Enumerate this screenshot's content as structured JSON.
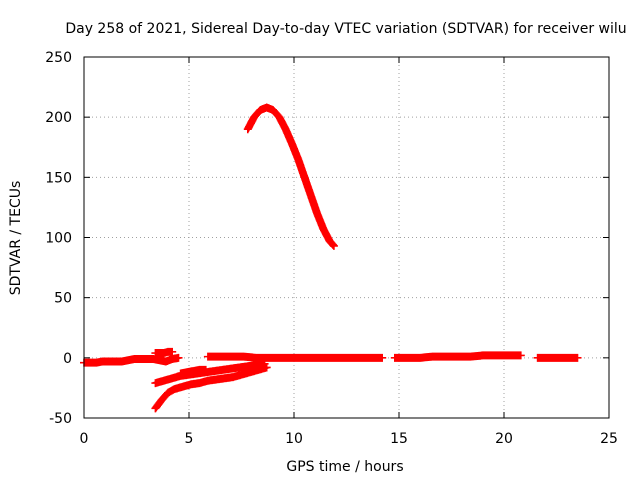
{
  "chart_data": {
    "type": "scatter",
    "title": "Day 258 of 2021, Sidereal Day-to-day VTEC variation (SDTVAR) for receiver wilu",
    "xlabel": "GPS time / hours",
    "ylabel": "SDTVAR / TECUs",
    "xlim": [
      0,
      25
    ],
    "ylim": [
      -50,
      250
    ],
    "xticks": [
      0,
      5,
      10,
      15,
      20,
      25
    ],
    "yticks": [
      -50,
      0,
      50,
      100,
      150,
      200,
      250
    ],
    "grid": true,
    "marker": "+",
    "color": "#ff0000",
    "series": [
      {
        "x": [
          7.8,
          8.1,
          8.4,
          8.7,
          9.0,
          9.3,
          9.6,
          9.9,
          10.2,
          10.5,
          10.8,
          11.1,
          11.4,
          11.7,
          11.9
        ],
        "y": [
          190,
          200,
          206,
          208,
          206,
          200,
          190,
          178,
          165,
          150,
          135,
          120,
          107,
          97,
          93
        ]
      },
      {
        "x": [
          0.0,
          0.3,
          0.6,
          0.9,
          1.2,
          1.5,
          1.8,
          2.1,
          2.4,
          2.7,
          3.0,
          3.3,
          3.6,
          3.9,
          4.2,
          4.5
        ],
        "y": [
          -4,
          -4,
          -4,
          -3,
          -3,
          -3,
          -3,
          -2,
          -1,
          -1,
          -1,
          -1,
          -2,
          -3,
          -1,
          0
        ]
      },
      {
        "x": [
          3.4,
          3.6,
          3.8,
          4.0,
          4.2
        ],
        "y": [
          4,
          4,
          4,
          5,
          5
        ]
      },
      {
        "x": [
          3.4,
          3.8,
          4.2,
          4.6,
          5.0,
          5.4,
          5.8,
          6.2,
          6.6,
          7.0,
          7.4,
          7.8,
          8.2,
          8.6
        ],
        "y": [
          -21,
          -19,
          -17,
          -15,
          -14,
          -13,
          -12,
          -11,
          -10,
          -9,
          -8,
          -7,
          -6,
          -5
        ]
      },
      {
        "x": [
          4.6,
          4.9,
          5.2,
          5.5,
          5.8
        ],
        "y": [
          -13,
          -12,
          -11,
          -10,
          -10
        ]
      },
      {
        "x": [
          3.4,
          3.7,
          4.0,
          4.3,
          4.7,
          5.1,
          5.5,
          5.9,
          6.3,
          6.7,
          7.1,
          7.5,
          7.9,
          8.3,
          8.7
        ],
        "y": [
          -42,
          -35,
          -29,
          -26,
          -24,
          -22,
          -21,
          -19,
          -18,
          -17,
          -16,
          -14,
          -12,
          -10,
          -8
        ]
      },
      {
        "x": [
          5.9,
          6.4,
          7.0,
          7.6,
          8.2,
          8.8,
          9.4,
          10.0,
          10.6,
          11.2,
          11.8,
          12.4,
          13.0,
          13.6,
          14.2
        ],
        "y": [
          1,
          1,
          1,
          1,
          0,
          0,
          0,
          0,
          0,
          0,
          0,
          0,
          0,
          0,
          0
        ]
      },
      {
        "x": [
          14.8,
          15.4,
          16.0,
          16.6,
          17.2,
          17.8,
          18.4,
          19.0,
          19.6,
          20.2,
          20.8
        ],
        "y": [
          0,
          0,
          0,
          1,
          1,
          1,
          1,
          2,
          2,
          2,
          2
        ]
      },
      {
        "x": [
          21.6,
          22.0,
          22.4,
          22.8,
          23.2,
          23.5
        ],
        "y": [
          0,
          0,
          0,
          0,
          0,
          0
        ]
      }
    ]
  }
}
